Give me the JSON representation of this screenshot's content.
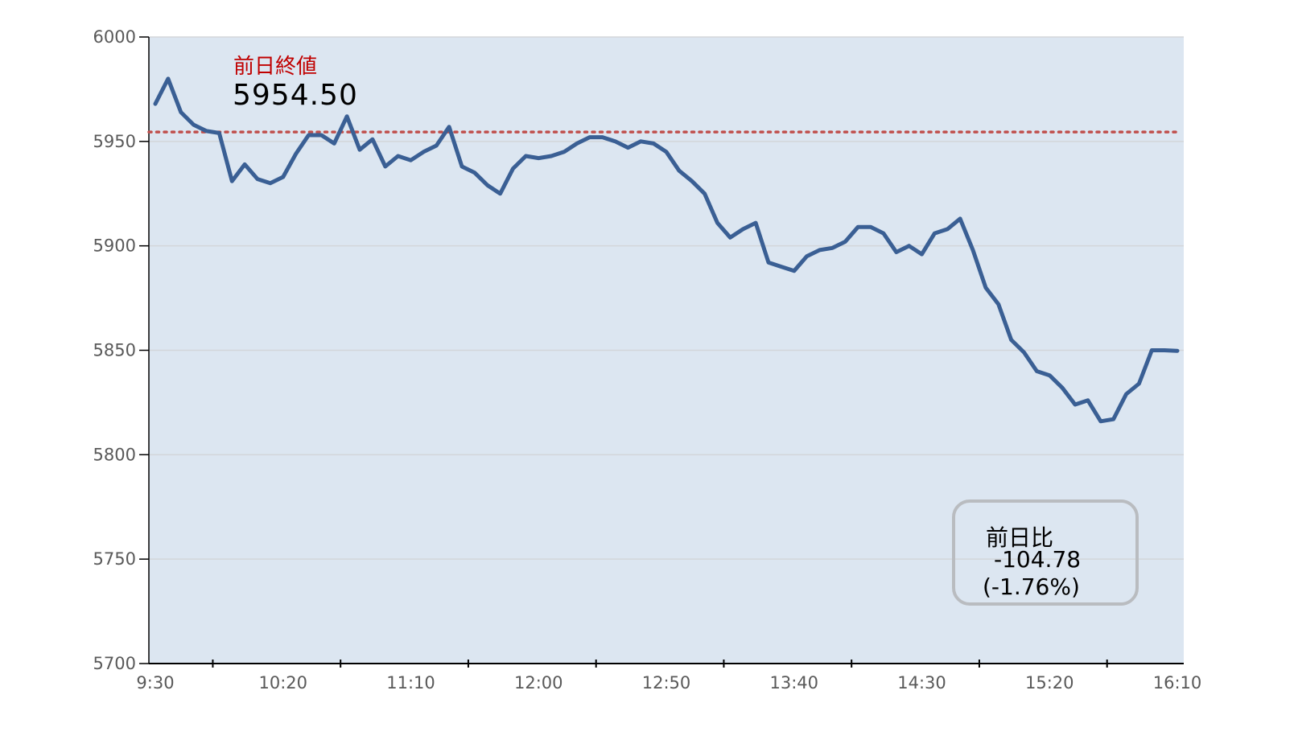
{
  "chart_data": {
    "type": "line",
    "title": "",
    "xlabel": "",
    "ylabel": "",
    "ylim": [
      5700,
      6000
    ],
    "yticks": [
      5700,
      5750,
      5800,
      5850,
      5900,
      5950,
      6000
    ],
    "xlim": [
      "9:30",
      "16:10"
    ],
    "xtick_labels": [
      "9:30",
      "10:20",
      "11:10",
      "12:00",
      "12:50",
      "13:40",
      "14:30",
      "15:20",
      "16:10"
    ],
    "grid": "horizontal",
    "interval_minutes": 5,
    "series": [
      {
        "color": "#3a5f94",
        "values": [
          5968,
          5980,
          5964,
          5958,
          5955,
          5954,
          5931,
          5939,
          5932,
          5930,
          5933,
          5944,
          5953,
          5953,
          5949,
          5962,
          5946,
          5951,
          5938,
          5943,
          5941,
          5945,
          5948,
          5957,
          5938,
          5935,
          5929,
          5925,
          5937,
          5943,
          5942,
          5943,
          5945,
          5949,
          5952,
          5952,
          5950,
          5947,
          5950,
          5949,
          5945,
          5936,
          5931,
          5925,
          5911,
          5904,
          5908,
          5911,
          5892,
          5890,
          5888,
          5895,
          5898,
          5899,
          5902,
          5909,
          5909,
          5906,
          5897,
          5900,
          5896,
          5906,
          5908,
          5913,
          5898,
          5880,
          5872,
          5855,
          5849,
          5840,
          5838,
          5832,
          5824,
          5826,
          5816,
          5817,
          5829,
          5834,
          5850,
          5850,
          5849.72
        ]
      }
    ],
    "reference_line": {
      "value": 5954.5,
      "color": "#c0504d",
      "style": "dotted"
    },
    "plot_background": "#dce6f1",
    "annotations": {
      "prev_close_label": "前日終値",
      "prev_close_value": "5954.50",
      "change_label": "前日比",
      "change_value": "-104.78",
      "change_percent": "(-1.76%)"
    }
  }
}
